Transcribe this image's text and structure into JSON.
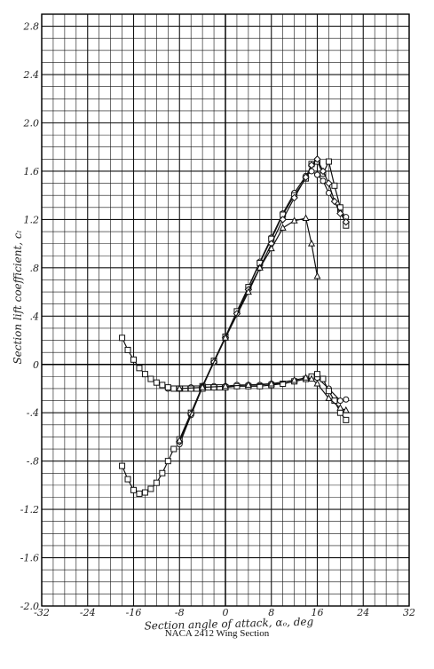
{
  "caption": "NACA 2412 Wing Section",
  "chart_data": {
    "type": "scatter",
    "title": "",
    "xlabel": "Section angle of attack, αₒ, deg",
    "ylabel": "Section lift coefficient, cₗ",
    "xlim": [
      -32,
      32
    ],
    "ylim": [
      -2.0,
      2.9
    ],
    "x_ticks": [
      -32,
      -24,
      -16,
      -8,
      0,
      8,
      16,
      24,
      32
    ],
    "x_tick_labels": [
      "-32",
      "-24",
      "-16",
      "-8",
      "0",
      "8",
      "16",
      "24",
      "32"
    ],
    "y_ticks": [
      -2.0,
      -1.6,
      -1.2,
      -0.8,
      -0.4,
      0,
      0.4,
      0.8,
      1.2,
      1.6,
      2.0,
      2.4,
      2.8
    ],
    "y_tick_labels": [
      "-2.0",
      "-1.6",
      "-1.2",
      "-.8",
      "-.4",
      "0",
      ".4",
      ".8",
      "1.2",
      "1.6",
      "2.0",
      "2.4",
      "2.8"
    ],
    "grid": true,
    "series": [
      {
        "marker": "circle",
        "points": [
          [
            -8,
            -0.66
          ],
          [
            -6,
            -0.42
          ],
          [
            -4,
            -0.19
          ],
          [
            -2,
            0.02
          ],
          [
            0,
            0.22
          ],
          [
            2,
            0.43
          ],
          [
            4,
            0.64
          ],
          [
            6,
            0.85
          ],
          [
            8,
            1.05
          ],
          [
            10,
            1.25
          ],
          [
            12,
            1.42
          ],
          [
            14,
            1.56
          ],
          [
            15,
            1.6
          ],
          [
            16,
            1.57
          ],
          [
            17,
            1.52
          ],
          [
            18,
            1.42
          ],
          [
            20,
            1.27
          ],
          [
            21,
            1.22
          ]
        ]
      },
      {
        "marker": "circle",
        "points": [
          [
            -10,
            -0.2
          ],
          [
            -8,
            -0.2
          ],
          [
            -6,
            -0.19
          ],
          [
            -4,
            -0.19
          ],
          [
            -2,
            -0.18
          ],
          [
            0,
            -0.18
          ],
          [
            2,
            -0.17
          ],
          [
            4,
            -0.17
          ],
          [
            6,
            -0.17
          ],
          [
            8,
            -0.16
          ],
          [
            10,
            -0.16
          ],
          [
            12,
            -0.14
          ],
          [
            14,
            -0.12
          ],
          [
            16,
            -0.11
          ],
          [
            18,
            -0.2
          ],
          [
            20,
            -0.3
          ],
          [
            21,
            -0.29
          ]
        ]
      },
      {
        "marker": "square",
        "points": [
          [
            -18,
            0.22
          ],
          [
            -17,
            0.12
          ],
          [
            -16,
            0.04
          ],
          [
            -15,
            -0.03
          ],
          [
            -14,
            -0.08
          ],
          [
            -13,
            -0.12
          ],
          [
            -12,
            -0.15
          ],
          [
            -11,
            -0.17
          ],
          [
            -10,
            -0.19
          ],
          [
            -9,
            -0.2
          ],
          [
            -8,
            -0.2
          ],
          [
            -7,
            -0.2
          ],
          [
            -6,
            -0.2
          ],
          [
            -5,
            -0.2
          ],
          [
            -4,
            -0.2
          ],
          [
            -3,
            -0.19
          ],
          [
            -2,
            -0.19
          ],
          [
            -1,
            -0.19
          ],
          [
            0,
            -0.19
          ],
          [
            2,
            -0.18
          ],
          [
            4,
            -0.18
          ],
          [
            6,
            -0.18
          ],
          [
            8,
            -0.17
          ],
          [
            10,
            -0.16
          ],
          [
            12,
            -0.14
          ],
          [
            14,
            -0.12
          ],
          [
            15,
            -0.1
          ],
          [
            16,
            -0.08
          ],
          [
            17,
            -0.12
          ],
          [
            18,
            -0.22
          ],
          [
            19,
            -0.3
          ],
          [
            20,
            -0.4
          ],
          [
            21,
            -0.46
          ]
        ]
      },
      {
        "marker": "square",
        "points": [
          [
            -18,
            -0.84
          ],
          [
            -17,
            -0.95
          ],
          [
            -16,
            -1.04
          ],
          [
            -15,
            -1.07
          ],
          [
            -14,
            -1.06
          ],
          [
            -13,
            -1.03
          ],
          [
            -12,
            -0.98
          ],
          [
            -11,
            -0.9
          ],
          [
            -10,
            -0.8
          ],
          [
            -9,
            -0.7
          ]
        ]
      },
      {
        "marker": "square",
        "points": [
          [
            -8,
            -0.62
          ],
          [
            -6,
            -0.4
          ],
          [
            -4,
            -0.18
          ],
          [
            -2,
            0.03
          ],
          [
            0,
            0.23
          ],
          [
            2,
            0.44
          ],
          [
            4,
            0.64
          ],
          [
            6,
            0.84
          ],
          [
            8,
            1.04
          ],
          [
            10,
            1.24
          ],
          [
            12,
            1.4
          ],
          [
            14,
            1.54
          ],
          [
            15,
            1.66
          ],
          [
            16,
            1.68
          ],
          [
            17,
            1.58
          ],
          [
            18,
            1.68
          ],
          [
            19,
            1.48
          ],
          [
            20,
            1.3
          ],
          [
            21,
            1.15
          ]
        ]
      },
      {
        "marker": "diamond",
        "points": [
          [
            -8,
            -0.64
          ],
          [
            -6,
            -0.41
          ],
          [
            -4,
            -0.18
          ],
          [
            -2,
            0.02
          ],
          [
            0,
            0.22
          ],
          [
            2,
            0.42
          ],
          [
            4,
            0.62
          ],
          [
            6,
            0.8
          ],
          [
            8,
            1.0
          ],
          [
            10,
            1.2
          ],
          [
            12,
            1.38
          ],
          [
            14,
            1.55
          ],
          [
            15,
            1.65
          ],
          [
            16,
            1.7
          ],
          [
            17,
            1.6
          ],
          [
            18,
            1.5
          ],
          [
            19,
            1.35
          ],
          [
            20,
            1.25
          ],
          [
            21,
            1.18
          ]
        ]
      },
      {
        "marker": "triangle",
        "points": [
          [
            -8,
            -0.63
          ],
          [
            -4,
            -0.18
          ],
          [
            0,
            0.22
          ],
          [
            4,
            0.6
          ],
          [
            6,
            0.8
          ],
          [
            8,
            0.96
          ],
          [
            10,
            1.13
          ],
          [
            12,
            1.19
          ],
          [
            14,
            1.21
          ],
          [
            15,
            1.0
          ],
          [
            16,
            0.73
          ]
        ]
      },
      {
        "marker": "triangle",
        "points": [
          [
            -8,
            -0.2
          ],
          [
            -4,
            -0.19
          ],
          [
            0,
            -0.18
          ],
          [
            4,
            -0.17
          ],
          [
            8,
            -0.16
          ],
          [
            12,
            -0.13
          ],
          [
            14,
            -0.11
          ],
          [
            15,
            -0.12
          ],
          [
            16,
            -0.16
          ],
          [
            18,
            -0.28
          ],
          [
            20,
            -0.36
          ],
          [
            21,
            -0.38
          ]
        ]
      }
    ]
  }
}
